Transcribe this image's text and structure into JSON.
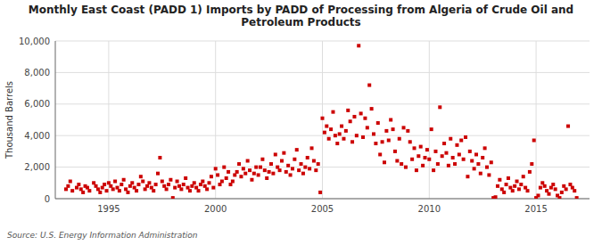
{
  "chart_data": {
    "type": "scatter",
    "title": "Monthly East Coast (PADD 1) Imports by PADD of Processing from Algeria of Crude Oil and\nPetroleum Products",
    "ylabel": "Thousand Barrels",
    "source": "Source: U.S. Energy Information Administration",
    "color": "#cc0000",
    "marker": "square",
    "grid": true,
    "xlim": [
      1992.5,
      2017.5
    ],
    "xticks": [
      1995,
      2000,
      2005,
      2010,
      2015
    ],
    "ylim": [
      0,
      10000
    ],
    "yticks": [
      0,
      {
        "value": 2000,
        "label": "2,000"
      },
      {
        "value": 4000,
        "label": "4,000"
      },
      {
        "value": 6000,
        "label": "6,000"
      },
      {
        "value": 8000,
        "label": "8,000"
      },
      {
        "value": 10000,
        "label": "10,000"
      }
    ],
    "x": [
      1993.0,
      1993.1,
      1993.2,
      1993.3,
      1993.5,
      1993.6,
      1993.7,
      1993.8,
      1993.9,
      1994.0,
      1994.1,
      1994.3,
      1994.4,
      1994.5,
      1994.6,
      1994.7,
      1994.8,
      1994.9,
      1995.0,
      1995.1,
      1995.2,
      1995.3,
      1995.4,
      1995.5,
      1995.6,
      1995.7,
      1995.8,
      1995.9,
      1996.0,
      1996.1,
      1996.2,
      1996.3,
      1996.4,
      1996.5,
      1996.6,
      1996.7,
      1996.8,
      1996.9,
      1997.0,
      1997.1,
      1997.2,
      1997.3,
      1997.4,
      1997.5,
      1997.6,
      1997.7,
      1997.8,
      1997.9,
      1998.0,
      1998.1,
      1998.2,
      1998.3,
      1998.4,
      1998.5,
      1998.6,
      1998.7,
      1998.8,
      1998.9,
      1999.0,
      1999.1,
      1999.2,
      1999.3,
      1999.4,
      1999.5,
      1999.6,
      1999.7,
      1999.8,
      1999.9,
      2000.0,
      2000.1,
      2000.2,
      2000.3,
      2000.4,
      2000.5,
      2000.6,
      2000.7,
      2000.8,
      2000.9,
      2001.0,
      2001.1,
      2001.2,
      2001.3,
      2001.4,
      2001.5,
      2001.6,
      2001.7,
      2001.8,
      2001.9,
      2002.0,
      2002.1,
      2002.2,
      2002.3,
      2002.4,
      2002.5,
      2002.6,
      2002.7,
      2002.8,
      2002.9,
      2003.0,
      2003.1,
      2003.2,
      2003.3,
      2003.4,
      2003.5,
      2003.6,
      2003.7,
      2003.8,
      2003.9,
      2004.0,
      2004.1,
      2004.2,
      2004.3,
      2004.4,
      2004.5,
      2004.6,
      2004.7,
      2004.8,
      2004.9,
      2005.0,
      2005.1,
      2005.2,
      2005.3,
      2005.4,
      2005.5,
      2005.6,
      2005.7,
      2005.8,
      2005.9,
      2006.0,
      2006.1,
      2006.2,
      2006.3,
      2006.4,
      2006.5,
      2006.6,
      2006.7,
      2006.8,
      2006.9,
      2007.0,
      2007.1,
      2007.2,
      2007.3,
      2007.4,
      2007.5,
      2007.6,
      2007.7,
      2007.8,
      2007.9,
      2008.0,
      2008.1,
      2008.2,
      2008.3,
      2008.4,
      2008.5,
      2008.6,
      2008.7,
      2008.8,
      2008.9,
      2009.0,
      2009.1,
      2009.2,
      2009.3,
      2009.4,
      2009.5,
      2009.6,
      2009.7,
      2009.8,
      2009.9,
      2010.0,
      2010.1,
      2010.2,
      2010.3,
      2010.4,
      2010.5,
      2010.6,
      2010.7,
      2010.8,
      2010.9,
      2011.0,
      2011.1,
      2011.2,
      2011.3,
      2011.4,
      2011.5,
      2011.6,
      2011.7,
      2011.8,
      2011.9,
      2012.0,
      2012.1,
      2012.2,
      2012.3,
      2012.4,
      2012.5,
      2012.6,
      2012.7,
      2012.8,
      2012.9,
      2013.0,
      2013.1,
      2013.2,
      2013.3,
      2013.4,
      2013.5,
      2013.6,
      2013.7,
      2013.8,
      2013.9,
      2014.0,
      2014.1,
      2014.2,
      2014.3,
      2014.4,
      2014.5,
      2014.6,
      2014.7,
      2014.8,
      2014.9,
      2015.0,
      2015.1,
      2015.2,
      2015.3,
      2015.4,
      2015.5,
      2015.6,
      2015.7,
      2015.8,
      2015.9,
      2016.0,
      2016.1,
      2016.2,
      2016.3,
      2016.4,
      2016.5,
      2016.6,
      2016.7,
      2016.8,
      2016.9
    ],
    "values": [
      600,
      800,
      1100,
      500,
      700,
      900,
      600,
      400,
      800,
      700,
      500,
      1000,
      800,
      600,
      400,
      700,
      900,
      500,
      1000,
      800,
      600,
      1100,
      700,
      500,
      900,
      1200,
      600,
      400,
      800,
      1000,
      700,
      500,
      900,
      1400,
      1100,
      600,
      800,
      1000,
      700,
      500,
      900,
      1600,
      2600,
      1100,
      800,
      600,
      900,
      1200,
      50,
      700,
      1100,
      800,
      600,
      900,
      1300,
      700,
      500,
      800,
      1000,
      700,
      500,
      900,
      1100,
      800,
      600,
      1000,
      1400,
      700,
      1900,
      1500,
      900,
      1100,
      2000,
      1300,
      1700,
      900,
      1100,
      1500,
      1700,
      2200,
      1400,
      1900,
      1600,
      2400,
      1800,
      1200,
      1600,
      2000,
      1500,
      2000,
      2500,
      1800,
      1300,
      1700,
      2200,
      1600,
      2800,
      2000,
      1800,
      2400,
      2900,
      1700,
      2100,
      1500,
      1900,
      2500,
      3100,
      1800,
      2200,
      1600,
      2000,
      2600,
      1900,
      3200,
      2400,
      1800,
      2200,
      400,
      5100,
      4200,
      4600,
      3800,
      4400,
      5500,
      4000,
      3500,
      4100,
      4600,
      3800,
      4300,
      5600,
      4900,
      3600,
      5200,
      4000,
      9700,
      5400,
      3900,
      5100,
      4500,
      7200,
      5700,
      4100,
      3500,
      4800,
      2800,
      3600,
      2300,
      4300,
      3700,
      5000,
      4400,
      3000,
      2400,
      3800,
      2200,
      4500,
      2000,
      4300,
      3600,
      2500,
      3200,
      1800,
      2700,
      3300,
      2100,
      2600,
      3100,
      2500,
      4400,
      1800,
      3000,
      2200,
      5800,
      2700,
      3500,
      2900,
      2100,
      3800,
      2600,
      2200,
      3400,
      2800,
      3700,
      2500,
      3900,
      1400,
      3000,
      2400,
      1900,
      2800,
      2200,
      1600,
      2600,
      3200,
      2000,
      1500,
      2300,
      50,
      100,
      800,
      1200,
      600,
      400,
      900,
      1300,
      700,
      500,
      800,
      1100,
      600,
      900,
      1400,
      700,
      500,
      1700,
      2200,
      3700,
      50,
      200,
      700,
      1000,
      800,
      500,
      300,
      700,
      900,
      600,
      200,
      50,
      400,
      800,
      600,
      4600,
      900,
      700,
      500,
      50
    ]
  }
}
